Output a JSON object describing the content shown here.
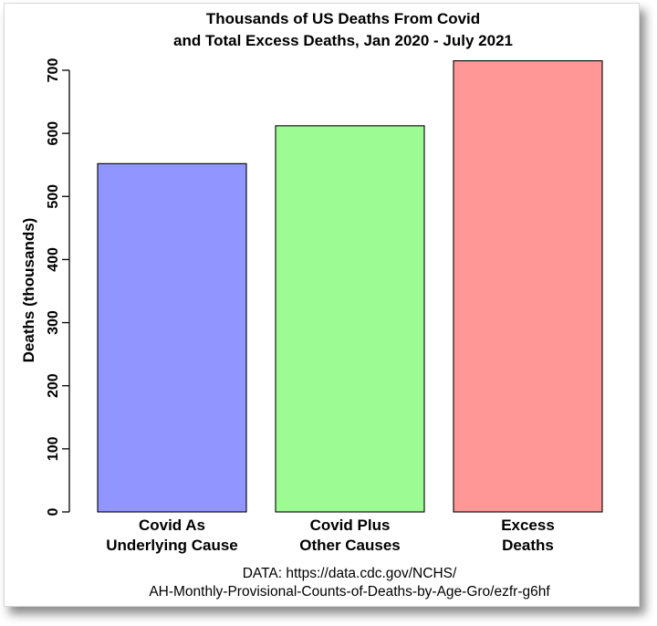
{
  "chart_data": {
    "type": "bar",
    "title_lines": [
      "Thousands of US Deaths From Covid",
      "and Total Excess Deaths, Jan 2020 - July 2021"
    ],
    "ylabel": "Deaths (thousands)",
    "categories": [
      [
        "Covid As",
        "Underlying Cause"
      ],
      [
        "Covid Plus",
        "Other Causes"
      ],
      [
        "Excess",
        "Deaths"
      ]
    ],
    "values": [
      552,
      612,
      715
    ],
    "colors": [
      "#9095ff",
      "#9dfb93",
      "#ff9797"
    ],
    "yticks": [
      0,
      100,
      200,
      300,
      400,
      500,
      600,
      700
    ],
    "ylim": [
      0,
      700
    ],
    "source_lines": [
      "DATA: https://data.cdc.gov/NCHS/",
      "AH-Monthly-Provisional-Counts-of-Deaths-by-Age-Gro/ezfr-g6hf"
    ]
  }
}
